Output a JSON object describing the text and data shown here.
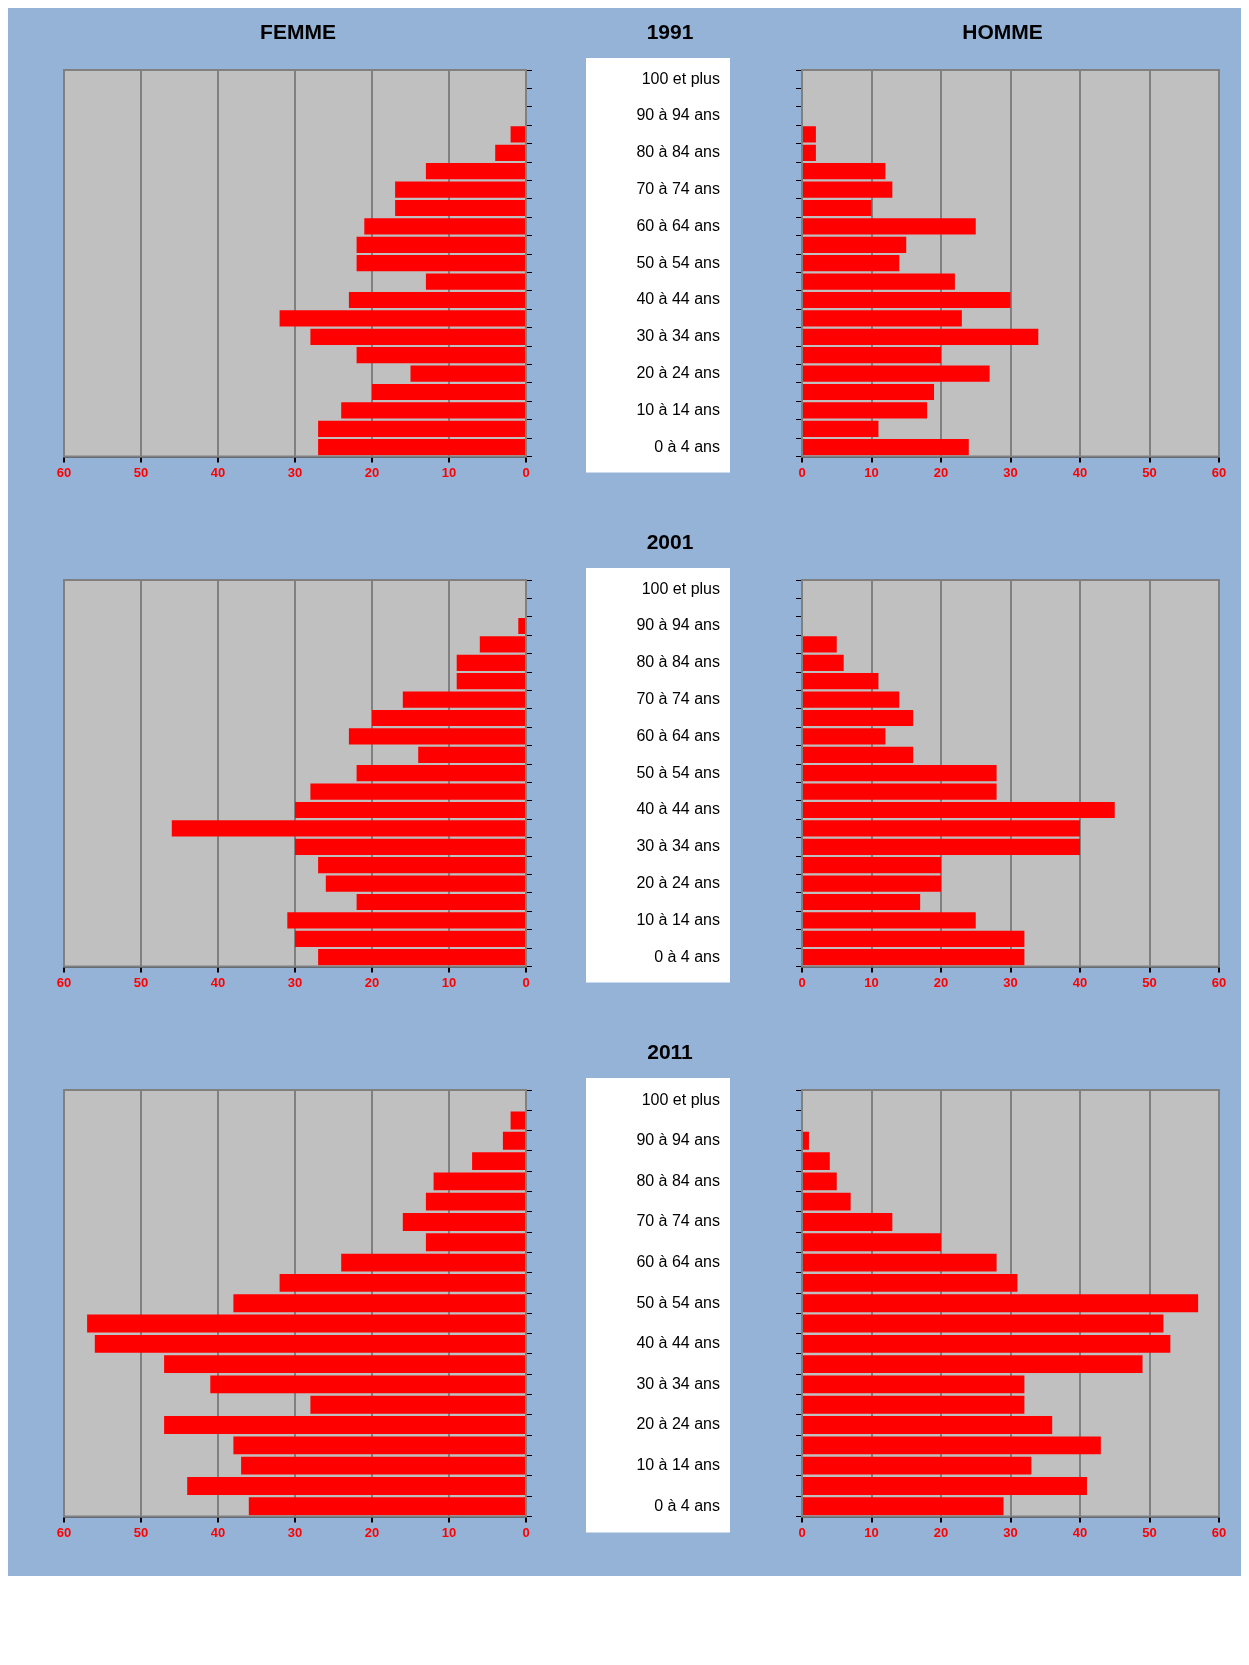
{
  "chart_data": [
    {
      "type": "bar",
      "orientation": "horizontal",
      "title": "FEMME",
      "categories": [
        null,
        null,
        null,
        null,
        null,
        null,
        null,
        null,
        null,
        null,
        null,
        null,
        null,
        null,
        null,
        null,
        null,
        null,
        null,
        null,
        null
      ],
      "color": "#ff0000",
      "values": [
        0,
        0,
        0,
        2,
        4,
        13,
        17,
        17,
        21,
        22,
        22,
        13,
        23,
        32,
        28,
        22,
        15,
        20,
        24,
        27,
        27
      ],
      "xlim": [
        60,
        0
      ],
      "xticks": [
        0,
        10,
        20,
        30,
        40,
        50,
        60
      ],
      "grid": "x",
      "tick_labels": "x"
    },
    {
      "type": "bar",
      "orientation": "horizontal",
      "title": "1991",
      "subtitle": "HOMME",
      "categories": [
        "100 et plus",
        null,
        "90 à 94 ans",
        null,
        "80 à 84 ans",
        null,
        "70 à 74 ans",
        null,
        "60 à 64 ans",
        null,
        "50 à 54 ans",
        null,
        "40 à 44 ans",
        null,
        "30 à 34 ans",
        null,
        "20 à 24 ans",
        null,
        "10 à 14 ans",
        null,
        "0 à 4 ans"
      ],
      "color": "#ff0000",
      "values": [
        0,
        0,
        0,
        2,
        2,
        12,
        13,
        10,
        25,
        15,
        14,
        22,
        30,
        23,
        34,
        20,
        27,
        19,
        18,
        11,
        24
      ],
      "xlim": [
        0,
        60
      ],
      "xticks": [
        0,
        10,
        20,
        30,
        40,
        50,
        60
      ],
      "grid": "x"
    },
    {
      "type": "bar",
      "orientation": "horizontal",
      "categories": [
        null,
        null,
        null,
        null,
        null,
        null,
        null,
        null,
        null,
        null,
        null,
        null,
        null,
        null,
        null,
        null,
        null,
        null,
        null,
        null,
        null
      ],
      "color": "#ff0000",
      "values": [
        0,
        0,
        1,
        6,
        9,
        9,
        16,
        20,
        23,
        14,
        22,
        28,
        30,
        46,
        30,
        27,
        26,
        22,
        31,
        30,
        27
      ],
      "xlim": [
        60,
        0
      ],
      "xticks": [
        0,
        10,
        20,
        30,
        40,
        50,
        60
      ],
      "grid": "x",
      "tick_labels": "x"
    },
    {
      "type": "bar",
      "orientation": "horizontal",
      "title": "2001",
      "categories": [
        "100 et plus",
        null,
        "90 à 94 ans",
        null,
        "80 à 84 ans",
        null,
        "70 à 74 ans",
        null,
        "60 à 64 ans",
        null,
        "50 à 54 ans",
        null,
        "40 à 44 ans",
        null,
        "30 à 34 ans",
        null,
        "20 à 24 ans",
        null,
        "10 à 14 ans",
        null,
        "0 à 4 ans"
      ],
      "color": "#ff0000",
      "values": [
        0,
        0,
        0,
        5,
        6,
        11,
        14,
        16,
        12,
        16,
        28,
        28,
        45,
        40,
        40,
        20,
        20,
        17,
        25,
        32,
        32
      ],
      "xlim": [
        0,
        60
      ],
      "xticks": [
        0,
        10,
        20,
        30,
        40,
        50,
        60
      ],
      "grid": "x"
    },
    {
      "type": "bar",
      "orientation": "horizontal",
      "categories": [
        null,
        null,
        null,
        null,
        null,
        null,
        null,
        null,
        null,
        null,
        null,
        null,
        null,
        null,
        null,
        null,
        null,
        null,
        null,
        null,
        null
      ],
      "color": "#ff0000",
      "values": [
        0,
        2,
        3,
        7,
        12,
        13,
        16,
        13,
        24,
        32,
        38,
        57,
        56,
        47,
        41,
        28,
        47,
        38,
        37,
        44,
        36
      ],
      "xlim": [
        60,
        0
      ],
      "xticks": [
        0,
        10,
        20,
        30,
        40,
        50,
        60
      ],
      "grid": "x",
      "tick_labels": "x"
    },
    {
      "type": "bar",
      "orientation": "horizontal",
      "title": "2011",
      "categories": [
        "100 et plus",
        null,
        "90 à 94 ans",
        null,
        "80 à 84 ans",
        null,
        "70 à 74 ans",
        null,
        "60 à 64 ans",
        null,
        "50 à 54 ans",
        null,
        "40 à 44 ans",
        null,
        "30 à 34 ans",
        null,
        "20 à 24 ans",
        null,
        "10 à 14 ans",
        null,
        "0 à 4 ans"
      ],
      "color": "#ff0000",
      "values": [
        0,
        0,
        1,
        4,
        5,
        7,
        13,
        20,
        28,
        31,
        57,
        52,
        53,
        49,
        32,
        32,
        36,
        43,
        33,
        41,
        29
      ],
      "xlim": [
        0,
        60
      ],
      "xticks": [
        0,
        10,
        20,
        30,
        40,
        50,
        60
      ],
      "grid": "x"
    }
  ]
}
